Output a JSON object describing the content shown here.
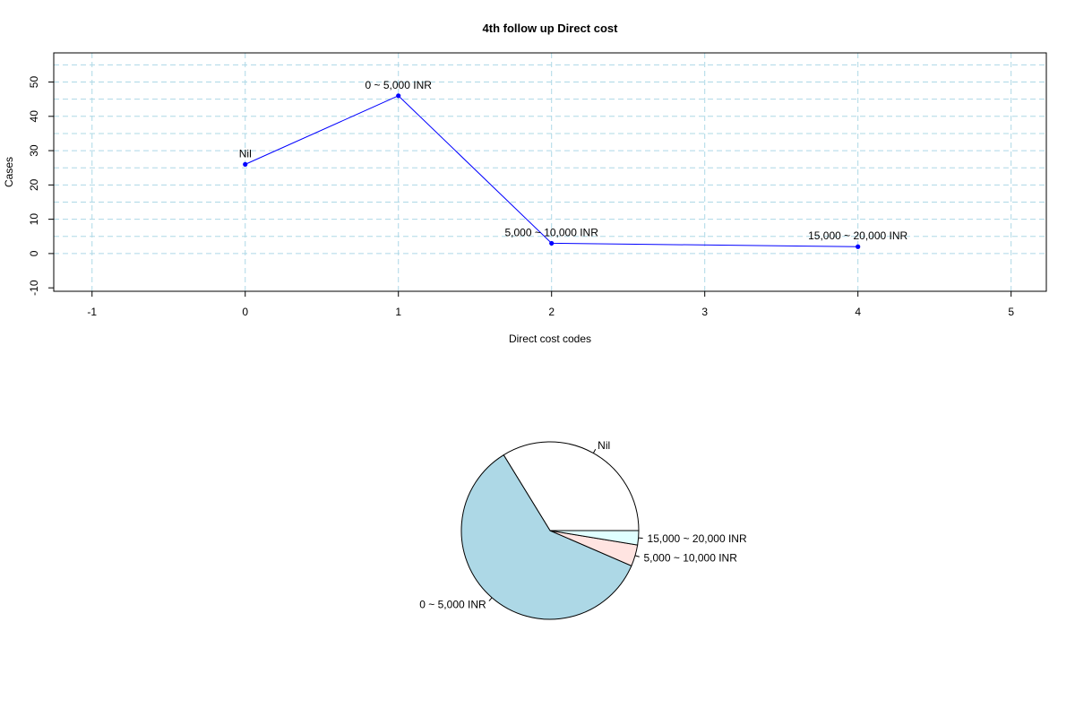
{
  "chart_data": [
    {
      "type": "line",
      "title": "4th follow up Direct cost",
      "xlabel": "Direct cost codes",
      "ylabel": "Cases",
      "xlim": [
        -1.25,
        5.23
      ],
      "ylim": [
        -11,
        58.5
      ],
      "x_ticks": [
        -1,
        0,
        1,
        2,
        3,
        4,
        5
      ],
      "y_ticks": [
        -10,
        0,
        10,
        20,
        30,
        40,
        50
      ],
      "grid": true,
      "grid_color": "#add8e6",
      "line_color": "#0000ff",
      "x_grid": [
        -1,
        0,
        1,
        2,
        3,
        4,
        5
      ],
      "y_grid": [
        0,
        5,
        10,
        15,
        20,
        25,
        30,
        35,
        40,
        45,
        50,
        55
      ],
      "points": [
        {
          "x": 0,
          "y": 26,
          "label": "Nil"
        },
        {
          "x": 1,
          "y": 46,
          "label": "0 ~ 5,000 INR"
        },
        {
          "x": 2,
          "y": 3,
          "label": "5,000 ~ 10,000 INR"
        },
        {
          "x": 4,
          "y": 2,
          "label": "15,000 ~ 20,000 INR"
        }
      ]
    },
    {
      "type": "pie",
      "slices": [
        {
          "label": "Nil",
          "value": 26,
          "color": "#ffffff"
        },
        {
          "label": "0 ~ 5,000 INR",
          "value": 46,
          "color": "#add8e6"
        },
        {
          "label": "5,000 ~ 10,000 INR",
          "value": 3,
          "color": "#ffe4e1"
        },
        {
          "label": "15,000 ~ 20,000 INR",
          "value": 2,
          "color": "#e0ffff"
        }
      ]
    }
  ]
}
